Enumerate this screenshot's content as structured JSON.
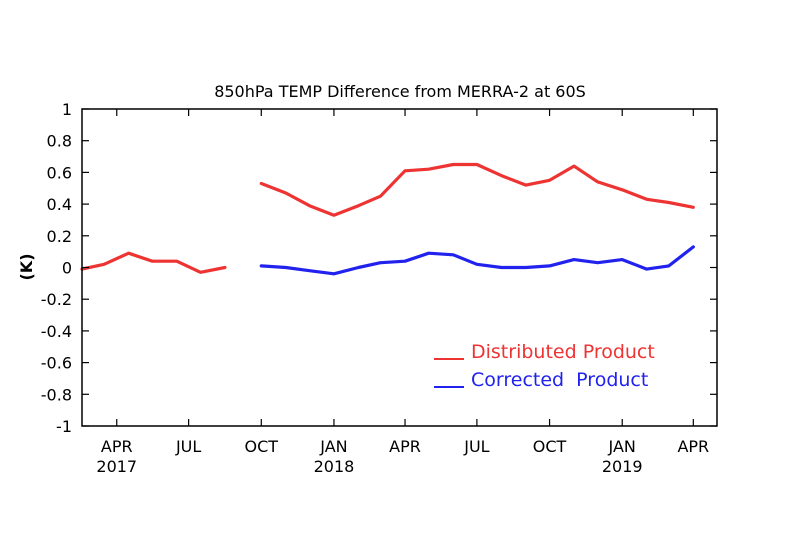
{
  "chart_data": {
    "type": "line",
    "title": "850hPa TEMP Difference from MERRA-2 at 60S",
    "ylabel": "(K)",
    "ylim": [
      -1,
      1
    ],
    "yticks": [
      1,
      0.8,
      0.6,
      0.4,
      0.2,
      0,
      -0.2,
      -0.4,
      -0.6,
      -0.8,
      -1
    ],
    "xlim": [
      "2017-02-16",
      "2019-05-01"
    ],
    "xticks": [
      {
        "date": "2017-04-01",
        "label": "APR",
        "year": "2017"
      },
      {
        "date": "2017-07-01",
        "label": "JUL",
        "year": ""
      },
      {
        "date": "2017-10-01",
        "label": "OCT",
        "year": ""
      },
      {
        "date": "2018-01-01",
        "label": "JAN",
        "year": "2018"
      },
      {
        "date": "2018-04-01",
        "label": "APR",
        "year": ""
      },
      {
        "date": "2018-07-01",
        "label": "JUL",
        "year": ""
      },
      {
        "date": "2018-10-01",
        "label": "OCT",
        "year": ""
      },
      {
        "date": "2019-01-01",
        "label": "JAN",
        "year": "2019"
      },
      {
        "date": "2019-04-01",
        "label": "APR",
        "year": ""
      }
    ],
    "grid": false,
    "legend_position": "lower-right",
    "series": [
      {
        "name": "Distributed Product",
        "color": "#ee3333",
        "x": [
          "2017-02-16",
          "2017-03-16",
          "2017-04-16",
          "2017-05-16",
          "2017-06-16",
          "2017-07-16",
          "2017-08-16",
          "2017-09-16",
          "2017-10-01",
          "2017-11-01",
          "2017-12-01",
          "2018-01-01",
          "2018-02-01",
          "2018-03-01",
          "2018-04-01",
          "2018-05-01",
          "2018-06-01",
          "2018-07-01",
          "2018-08-01",
          "2018-09-01",
          "2018-10-01",
          "2018-11-01",
          "2018-12-01",
          "2019-01-01",
          "2019-02-01",
          "2019-03-01",
          "2019-04-01"
        ],
        "values": [
          -0.01,
          0.02,
          0.09,
          0.04,
          0.04,
          -0.03,
          0.0,
          null,
          0.53,
          0.47,
          0.39,
          0.33,
          0.39,
          0.45,
          0.61,
          0.62,
          0.65,
          0.65,
          0.58,
          0.52,
          0.55,
          0.64,
          0.54,
          0.49,
          0.43,
          0.41,
          0.38
        ]
      },
      {
        "name": "Corrected  Product",
        "color": "#2222ee",
        "x": [
          "2017-10-01",
          "2017-11-01",
          "2017-12-01",
          "2018-01-01",
          "2018-02-01",
          "2018-03-01",
          "2018-04-01",
          "2018-05-01",
          "2018-06-01",
          "2018-07-01",
          "2018-08-01",
          "2018-09-01",
          "2018-10-01",
          "2018-11-01",
          "2018-12-01",
          "2019-01-01",
          "2019-02-01",
          "2019-03-01",
          "2019-04-01"
        ],
        "values": [
          0.01,
          0.0,
          -0.02,
          -0.04,
          0.0,
          0.03,
          0.04,
          0.09,
          0.08,
          0.02,
          0.0,
          0.0,
          0.01,
          0.05,
          0.03,
          0.05,
          -0.01,
          0.01,
          0.13
        ]
      }
    ]
  }
}
